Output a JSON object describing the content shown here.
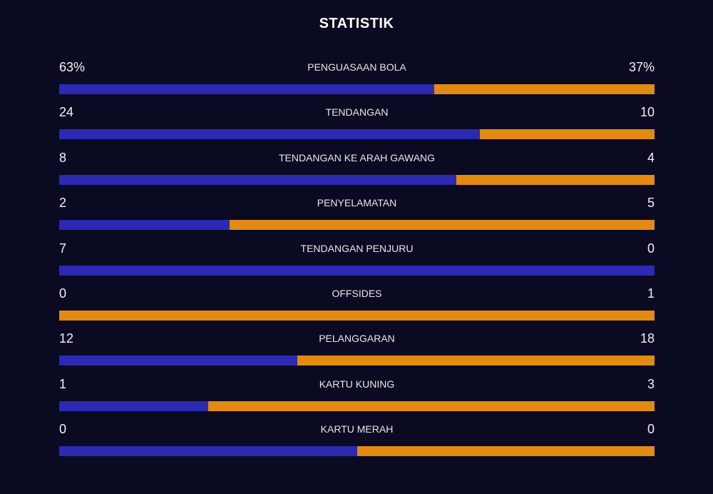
{
  "title": "STATISTIK",
  "colors": {
    "background": "#0a0a22",
    "home": "#2a2ab2",
    "away": "#e28a12"
  },
  "stats": [
    {
      "label": "PENGUASAAN BOLA",
      "home": "63%",
      "away": "37%",
      "home_share": 0.63
    },
    {
      "label": "TENDANGAN",
      "home": "24",
      "away": "10",
      "home_share": 0.706
    },
    {
      "label": "TENDANGAN KE ARAH GAWANG",
      "home": "8",
      "away": "4",
      "home_share": 0.667
    },
    {
      "label": "PENYELAMATAN",
      "home": "2",
      "away": "5",
      "home_share": 0.286
    },
    {
      "label": "TENDANGAN PENJURU",
      "home": "7",
      "away": "0",
      "home_share": 1.0
    },
    {
      "label": "OFFSIDES",
      "home": "0",
      "away": "1",
      "home_share": 0.0
    },
    {
      "label": "PELANGGARAN",
      "home": "12",
      "away": "18",
      "home_share": 0.4
    },
    {
      "label": "KARTU KUNING",
      "home": "1",
      "away": "3",
      "home_share": 0.25
    },
    {
      "label": "KARTU MERAH",
      "home": "0",
      "away": "0",
      "home_share": 0.5
    }
  ]
}
